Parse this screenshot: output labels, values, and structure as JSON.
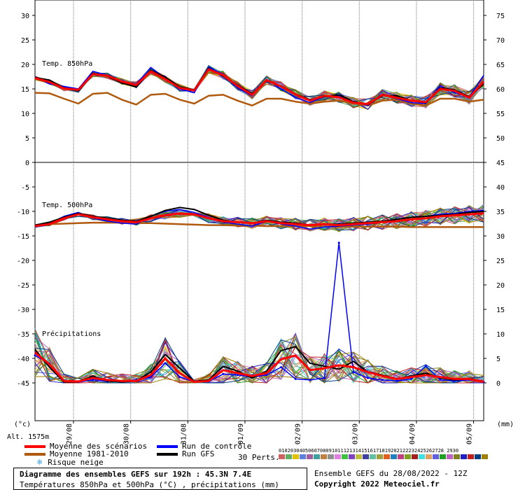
{
  "chart_data": {
    "type": "line",
    "x_dates": [
      "29/08",
      "30/08",
      "31/08",
      "01/09",
      "02/09",
      "03/09",
      "04/09",
      "05/09"
    ],
    "left_ticks": [
      30,
      25,
      20,
      15,
      10,
      5,
      0,
      -5,
      -10,
      -15,
      -20,
      -25,
      -30,
      -35,
      -40,
      -45
    ],
    "right_ticks_top": [
      75,
      70,
      65,
      60,
      55,
      50
    ],
    "right_ticks_bottom": [
      45,
      40,
      35,
      30,
      25,
      20,
      15,
      10,
      5,
      0
    ],
    "left_unit": "(°c)",
    "right_unit": "(mm)",
    "altitude": "Alt. 1575m",
    "panel_labels": {
      "t850": "Temp. 850hPa",
      "t500": "Temp. 500hPa",
      "precip": "Précipitations"
    },
    "series": {
      "t850_mean": [
        17.2,
        16.4,
        15.1,
        14.8,
        18.0,
        17.7,
        16.5,
        15.8,
        18.6,
        17.0,
        15.2,
        14.7,
        19.0,
        17.8,
        15.6,
        13.8,
        16.8,
        15.5,
        13.9,
        12.6,
        13.6,
        13.3,
        12.2,
        11.9,
        13.8,
        13.2,
        12.6,
        12.3,
        15.0,
        14.6,
        13.2,
        16.5
      ],
      "t850_climo": [
        14.2,
        14.1,
        13.0,
        12.0,
        14.0,
        14.2,
        12.8,
        11.8,
        13.8,
        14.0,
        12.8,
        12.0,
        13.6,
        13.8,
        12.6,
        11.6,
        13.0,
        13.0,
        12.4,
        12.0,
        12.4,
        12.6,
        12.0,
        11.6,
        12.6,
        12.8,
        12.0,
        11.6,
        13.0,
        13.0,
        12.4,
        12.8
      ],
      "t850_control": [
        17.5,
        16.0,
        15.5,
        15.0,
        18.6,
        17.8,
        16.5,
        16.0,
        19.4,
        17.2,
        15.0,
        14.2,
        19.4,
        18.0,
        15.2,
        13.6,
        17.0,
        15.0,
        13.2,
        12.2,
        13.4,
        13.6,
        12.4,
        11.6,
        14.0,
        13.0,
        12.2,
        12.0,
        15.6,
        14.2,
        13.4,
        17.8
      ],
      "t850_gfs": [
        17.3,
        16.8,
        15.2,
        14.6,
        18.2,
        17.6,
        16.2,
        15.4,
        18.8,
        17.4,
        15.4,
        14.8,
        19.2,
        17.6,
        15.8,
        14.0,
        16.6,
        15.6,
        14.0,
        12.8,
        13.4,
        13.8,
        12.4,
        11.8,
        13.6,
        13.6,
        12.6,
        12.2,
        15.2,
        14.8,
        13.4,
        16.0
      ],
      "t500_mean": [
        -13.0,
        -12.6,
        -11.4,
        -10.6,
        -11.2,
        -11.6,
        -12.0,
        -12.2,
        -11.4,
        -10.8,
        -10.4,
        -10.6,
        -11.4,
        -12.0,
        -12.2,
        -12.4,
        -12.0,
        -12.4,
        -12.6,
        -12.8,
        -12.6,
        -12.8,
        -12.6,
        -12.4,
        -12.2,
        -12.0,
        -11.6,
        -11.4,
        -11.0,
        -10.8,
        -10.6,
        -10.4
      ],
      "t500_climo": [
        -12.8,
        -12.6,
        -12.5,
        -12.4,
        -12.3,
        -12.3,
        -12.3,
        -12.4,
        -12.4,
        -12.5,
        -12.6,
        -12.7,
        -12.8,
        -12.8,
        -12.9,
        -12.9,
        -13.0,
        -13.0,
        -13.0,
        -13.0,
        -13.1,
        -13.1,
        -13.1,
        -13.1,
        -13.1,
        -13.1,
        -13.2,
        -13.2,
        -13.2,
        -13.2,
        -13.2,
        -13.2
      ],
      "t500_control": [
        -13.2,
        -12.4,
        -11.0,
        -10.2,
        -11.4,
        -12.0,
        -12.4,
        -12.6,
        -11.0,
        -10.0,
        -9.6,
        -10.2,
        -11.2,
        -12.2,
        -12.6,
        -13.0,
        -12.0,
        -12.6,
        -13.0,
        -13.6,
        -13.2,
        -13.0,
        -12.8,
        -12.6,
        -12.2,
        -11.6,
        -11.2,
        -11.0,
        -10.6,
        -10.4,
        -10.0,
        -9.8
      ],
      "t500_gfs": [
        -12.8,
        -12.2,
        -11.2,
        -10.4,
        -11.0,
        -11.4,
        -11.8,
        -12.0,
        -11.0,
        -9.8,
        -9.2,
        -9.6,
        -10.8,
        -11.8,
        -12.2,
        -12.4,
        -11.8,
        -12.2,
        -12.4,
        -12.8,
        -12.6,
        -12.6,
        -12.4,
        -12.2,
        -12.0,
        -11.6,
        -11.2,
        -11.0,
        -10.8,
        -10.6,
        -10.2,
        -10.0
      ],
      "precip_mean": [
        6.2,
        3.8,
        0.4,
        0.3,
        1.0,
        0.6,
        0.4,
        0.4,
        1.6,
        5.0,
        2.0,
        0.2,
        0.4,
        2.6,
        2.0,
        1.4,
        2.0,
        4.8,
        5.6,
        2.6,
        3.0,
        3.6,
        3.2,
        2.2,
        1.4,
        0.8,
        1.2,
        1.6,
        1.2,
        0.8,
        0.8,
        0.2
      ],
      "precip_control": [
        5.6,
        4.0,
        0.2,
        0.2,
        0.6,
        0.3,
        0.3,
        0.6,
        1.2,
        4.0,
        1.2,
        0.2,
        0.3,
        1.8,
        1.6,
        1.2,
        1.6,
        3.2,
        0.8,
        0.6,
        1.0,
        28.6,
        2.2,
        1.0,
        0.6,
        0.4,
        0.8,
        3.4,
        0.6,
        0.4,
        0.6,
        0.2
      ],
      "precip_gfs": [
        6.8,
        3.2,
        0.2,
        0.2,
        1.4,
        0.4,
        0.2,
        0.4,
        2.2,
        5.8,
        3.0,
        0.3,
        0.6,
        3.4,
        2.4,
        1.0,
        2.4,
        6.6,
        7.4,
        4.0,
        3.4,
        2.8,
        4.4,
        2.2,
        1.6,
        0.8,
        1.4,
        2.0,
        1.0,
        0.6,
        0.8,
        0.2
      ]
    }
  },
  "legend": {
    "mean": "Moyenne des scénarios",
    "climo": "Moyenne 1981-2010",
    "snow": "Risque neige",
    "control": "Run de contrôle",
    "gfs": "Run GFS",
    "perts": "30 Perts.",
    "pert_numbers": "01020304050607080910111213141516171819202122232425262728 2930",
    "colors": {
      "mean": "#ff0000",
      "climo": "#b05a10",
      "control": "#0000ff",
      "gfs": "#000000",
      "perts": [
        "#d06060",
        "#60b060",
        "#e0c000",
        "#6080e0",
        "#a060a0",
        "#40a0a0",
        "#c08040",
        "#909090",
        "#e080e0",
        "#40c040",
        "#8040c0",
        "#c0c040",
        "#4040a0",
        "#60c0a0",
        "#a0a040",
        "#e06020",
        "#2080c0",
        "#c04080",
        "#80a020",
        "#a02020",
        "#40e0e0",
        "#e0a060",
        "#6060e0",
        "#20a020",
        "#c060c0",
        "#808020",
        "#2020c0",
        "#c02020",
        "#004080",
        "#a08000"
      ]
    }
  },
  "footer": {
    "title": "Diagramme des ensembles GEFS sur 192h : 45.3N 7.4E",
    "subtitle": "Températures 850hPa et 500hPa (°C) , précipitations (mm)",
    "ensemble": "Ensemble GEFS du 28/08/2022 - 12Z",
    "copyright": "Copyright 2022 Meteociel.fr"
  }
}
